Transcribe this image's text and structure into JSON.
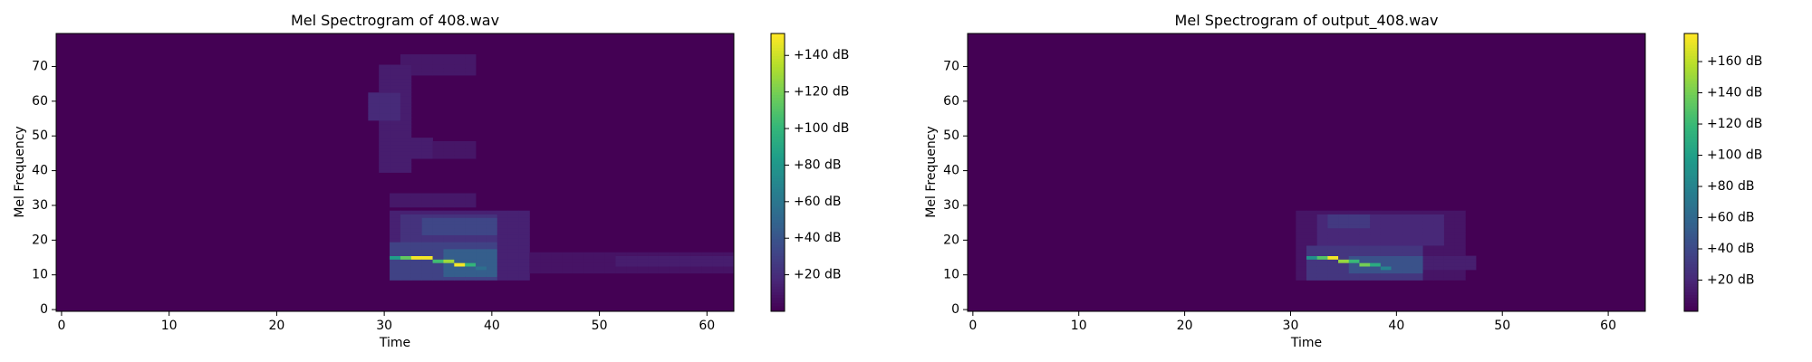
{
  "chart_data": [
    {
      "type": "heatmap",
      "title": "Mel Spectrogram of 408.wav",
      "xlabel": "Time",
      "ylabel": "Mel Frequency",
      "xlim": [
        -0.5,
        62.5
      ],
      "ylim": [
        -0.5,
        79.5
      ],
      "x_ticks": [
        0,
        10,
        20,
        30,
        40,
        50,
        60
      ],
      "y_ticks": [
        0,
        10,
        20,
        30,
        40,
        50,
        60,
        70
      ],
      "colormap": "viridis",
      "colorbar": {
        "range": [
          0,
          152
        ],
        "ticks": [
          20,
          40,
          60,
          80,
          100,
          120,
          140
        ],
        "tick_labels": [
          "+20 dB",
          "+40 dB",
          "+60 dB",
          "+80 dB",
          "+100 dB",
          "+120 dB",
          "+140 dB"
        ]
      },
      "background_db": 0,
      "regions": [
        {
          "t": [
            30,
            32
          ],
          "mel": [
            40,
            70
          ],
          "db": 12
        },
        {
          "t": [
            29,
            31
          ],
          "mel": [
            55,
            62
          ],
          "db": 18
        },
        {
          "t": [
            32,
            38
          ],
          "mel": [
            68,
            73
          ],
          "db": 10
        },
        {
          "t": [
            31,
            34
          ],
          "mel": [
            44,
            49
          ],
          "db": 12
        },
        {
          "t": [
            33,
            38
          ],
          "mel": [
            44,
            48
          ],
          "db": 9
        },
        {
          "t": [
            31,
            38
          ],
          "mel": [
            30,
            33
          ],
          "db": 10
        },
        {
          "t": [
            31,
            43
          ],
          "mel": [
            9,
            28
          ],
          "db": 14
        },
        {
          "t": [
            32,
            40
          ],
          "mel": [
            19,
            27
          ],
          "db": 22
        },
        {
          "t": [
            34,
            40
          ],
          "mel": [
            22,
            26
          ],
          "db": 32
        },
        {
          "t": [
            31,
            40
          ],
          "mel": [
            9,
            19
          ],
          "db": 30
        },
        {
          "t": [
            36,
            40
          ],
          "mel": [
            10,
            17
          ],
          "db": 45
        },
        {
          "t": [
            40,
            63
          ],
          "mel": [
            11,
            16
          ],
          "db": 8
        },
        {
          "t": [
            52,
            63
          ],
          "mel": [
            13,
            15
          ],
          "db": 12
        }
      ],
      "ridge": [
        {
          "t": 31,
          "mel": 15,
          "db": 85
        },
        {
          "t": 32,
          "mel": 15,
          "db": 115
        },
        {
          "t": 33,
          "mel": 15,
          "db": 150
        },
        {
          "t": 34,
          "mel": 15,
          "db": 150
        },
        {
          "t": 35,
          "mel": 14,
          "db": 105
        },
        {
          "t": 36,
          "mel": 14,
          "db": 130
        },
        {
          "t": 37,
          "mel": 13,
          "db": 150
        },
        {
          "t": 38,
          "mel": 13,
          "db": 100
        },
        {
          "t": 39,
          "mel": 12,
          "db": 55
        }
      ]
    },
    {
      "type": "heatmap",
      "title": "Mel Spectrogram of output_408.wav",
      "xlabel": "Time",
      "ylabel": "Mel Frequency",
      "xlim": [
        -0.5,
        63.5
      ],
      "ylim": [
        -0.5,
        79.5
      ],
      "x_ticks": [
        0,
        10,
        20,
        30,
        40,
        50,
        60
      ],
      "y_ticks": [
        0,
        10,
        20,
        30,
        40,
        50,
        60,
        70
      ],
      "colormap": "viridis",
      "colorbar": {
        "range": [
          0,
          178
        ],
        "ticks": [
          20,
          40,
          60,
          80,
          100,
          120,
          140,
          160
        ],
        "tick_labels": [
          "+20 dB",
          "+40 dB",
          "+60 dB",
          "+80 dB",
          "+100 dB",
          "+120 dB",
          "+140 dB",
          "+160 dB"
        ]
      },
      "background_db": 0,
      "regions": [
        {
          "t": [
            31,
            46
          ],
          "mel": [
            9,
            28
          ],
          "db": 10
        },
        {
          "t": [
            33,
            44
          ],
          "mel": [
            19,
            27
          ],
          "db": 20
        },
        {
          "t": [
            34,
            37
          ],
          "mel": [
            24,
            27
          ],
          "db": 30
        },
        {
          "t": [
            32,
            42
          ],
          "mel": [
            9,
            18
          ],
          "db": 28
        },
        {
          "t": [
            36,
            42
          ],
          "mel": [
            11,
            15
          ],
          "db": 45
        },
        {
          "t": [
            42,
            47
          ],
          "mel": [
            12,
            15
          ],
          "db": 15
        }
      ],
      "ridge": [
        {
          "t": 32,
          "mel": 15,
          "db": 90
        },
        {
          "t": 33,
          "mel": 15,
          "db": 130
        },
        {
          "t": 34,
          "mel": 15,
          "db": 175
        },
        {
          "t": 35,
          "mel": 14,
          "db": 150
        },
        {
          "t": 36,
          "mel": 14,
          "db": 120
        },
        {
          "t": 37,
          "mel": 13,
          "db": 140
        },
        {
          "t": 38,
          "mel": 13,
          "db": 110
        },
        {
          "t": 39,
          "mel": 12,
          "db": 80
        },
        {
          "t": 40,
          "mel": 12,
          "db": 45
        }
      ]
    }
  ]
}
